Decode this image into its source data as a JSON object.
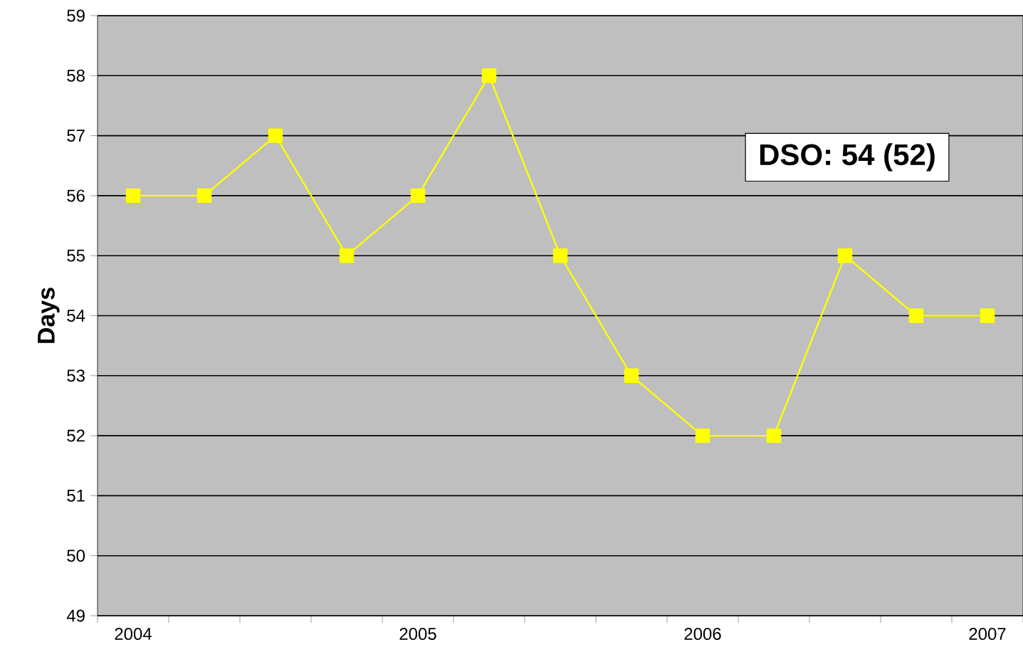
{
  "chart_data": {
    "type": "line",
    "ylabel": "Days",
    "categories": [
      "2004",
      null,
      null,
      null,
      "2005",
      null,
      null,
      null,
      "2006",
      null,
      null,
      null,
      "2007"
    ],
    "values": [
      56,
      56,
      57,
      55,
      56,
      58,
      55,
      53,
      52,
      52,
      55,
      54,
      54
    ],
    "color": "#ffff00",
    "marker": "square",
    "grid": "y",
    "ylim": [
      49,
      59
    ],
    "yticks": [
      49,
      50,
      51,
      52,
      53,
      54,
      55,
      56,
      57,
      58,
      59
    ],
    "annotations": [
      "DSO: 54 (52)"
    ]
  }
}
